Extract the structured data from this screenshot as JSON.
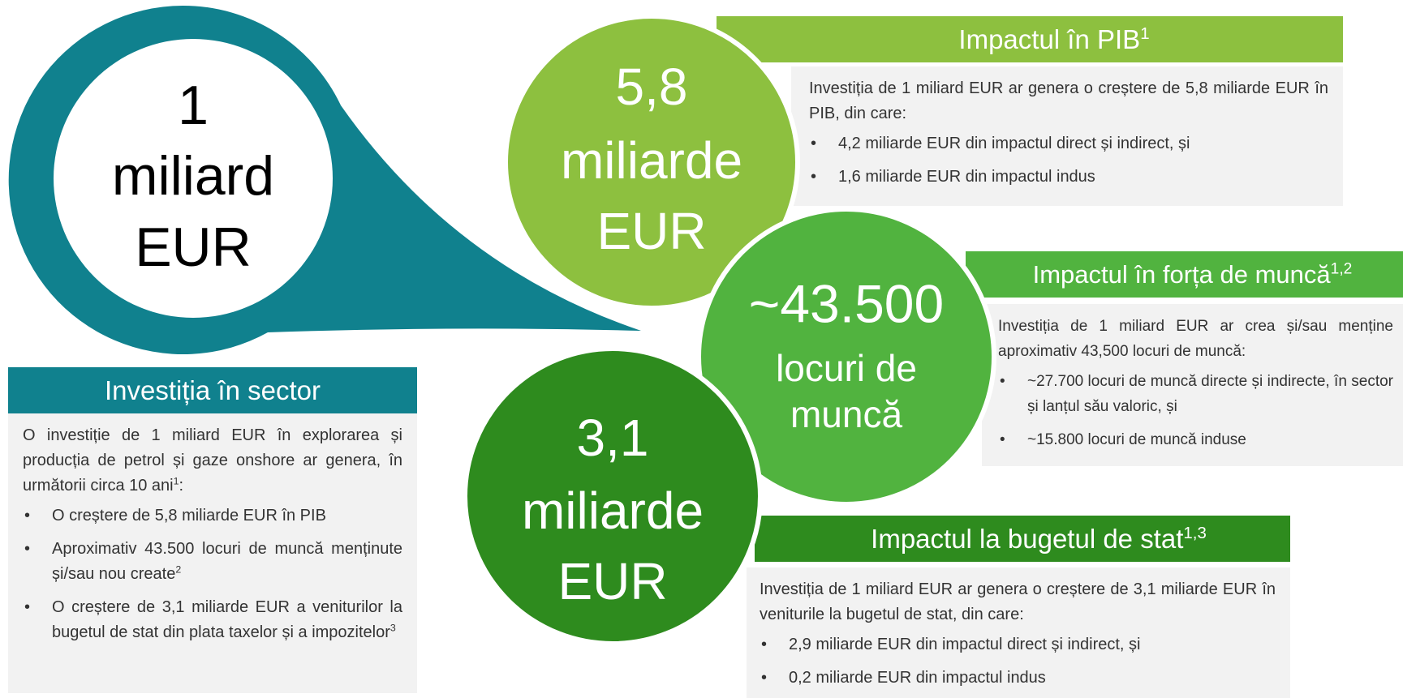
{
  "center": {
    "lines": [
      "1",
      "miliard",
      "EUR"
    ]
  },
  "sector": {
    "title": "Investiția în sector",
    "intro": {
      "text": "O investiție de 1 miliard EUR în explorarea și producția de petrol și gaze onshore ar genera, în următorii circa 10 ani",
      "sup": "1",
      "tail": ":"
    },
    "items": [
      {
        "text": "O creștere de 5,8 miliarde EUR în PIB"
      },
      {
        "text": "Aproximativ 43.500 locuri de muncă menținute și/sau nou create",
        "sup": "2"
      },
      {
        "text": "O creștere de 3,1 miliarde EUR a veniturilor la bugetul de stat din plata taxelor și a impozitelor",
        "sup": "3"
      }
    ]
  },
  "gdp": {
    "circle": [
      "5,8",
      "miliarde",
      "EUR"
    ],
    "title": "Impactul în PIB",
    "sup": "1",
    "intro": "Investiția de 1 miliard EUR ar genera o creștere de 5,8 miliarde EUR în PIB, din care:",
    "items": [
      "4,2 miliarde EUR din impactul direct și indirect, și",
      "1,6 miliarde EUR din impactul indus"
    ]
  },
  "jobs": {
    "circle": [
      "~43.500",
      "locuri de",
      "muncă"
    ],
    "title": "Impactul în forța de muncă",
    "sup": "1,2",
    "intro": "Investiția de 1 miliard EUR ar crea și/sau menține aproximativ 43,500 locuri de muncă:",
    "items": [
      "~27.700 locuri de muncă directe și indirecte, în sector și lanțul său valoric, și",
      "~15.800 locuri de muncă induse"
    ]
  },
  "budget": {
    "circle": [
      "3,1",
      "miliarde",
      "EUR"
    ],
    "title": "Impactul la bugetul de stat",
    "sup": "1,3",
    "intro": "Investiția de 1 miliard EUR ar genera o creștere de 3,1 miliarde EUR în veniturile la bugetul de stat, din care:",
    "items": [
      "2,9 miliarde EUR din impactul direct și indirect, și",
      "0,2 miliarde EUR din impactul indus"
    ]
  }
}
